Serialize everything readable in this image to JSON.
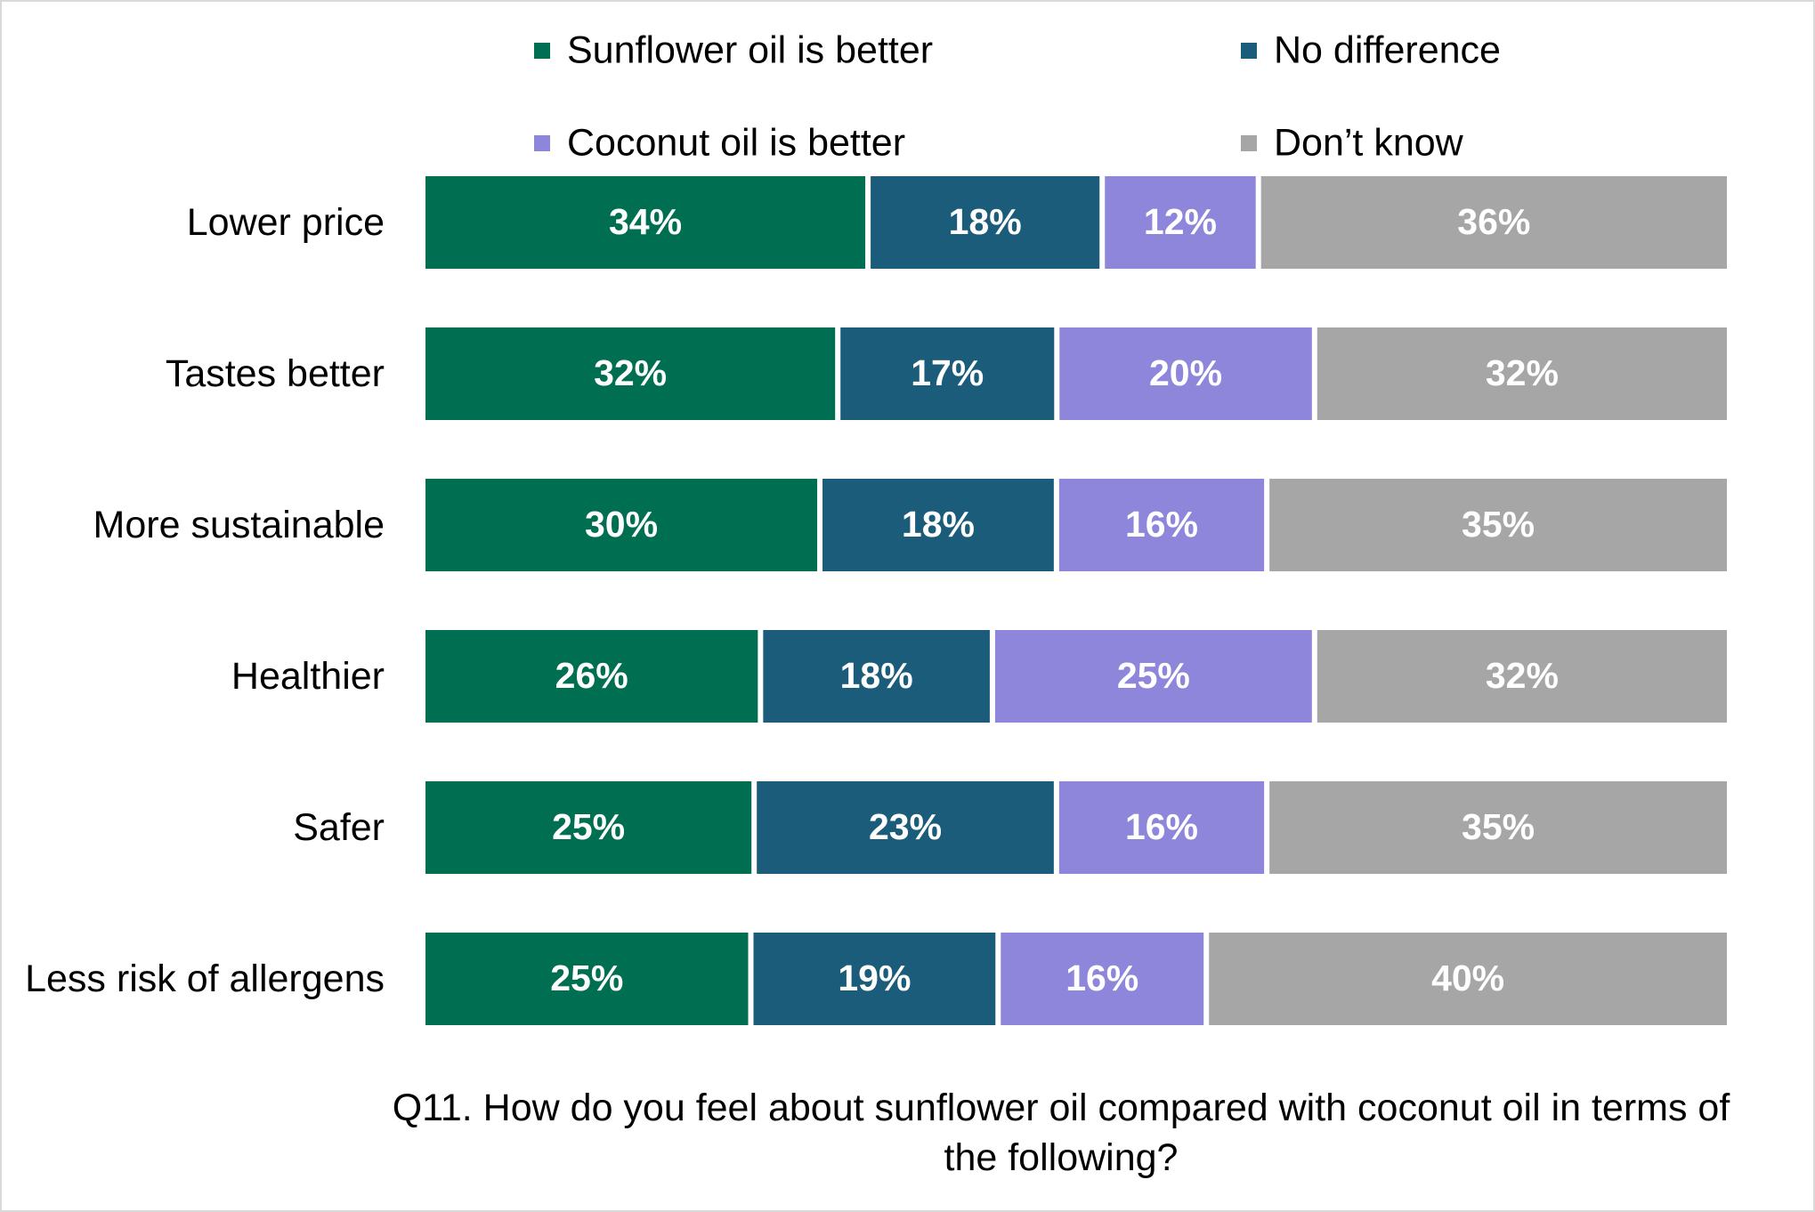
{
  "chart_data": {
    "type": "stacked-bar-100",
    "categories": [
      "Lower price",
      "Tastes better",
      "More sustainable",
      "Healthier",
      "Safer",
      "Less risk of allergens"
    ],
    "series": [
      {
        "name": "Sunflower oil is better",
        "color": "#006f51",
        "values": [
          34,
          32,
          30,
          26,
          25,
          25
        ],
        "value_labels": [
          "34%",
          "32%",
          "30%",
          "26%",
          "25%",
          "25%"
        ]
      },
      {
        "name": "No difference",
        "color": "#1a5c7a",
        "values": [
          18,
          17,
          18,
          18,
          23,
          19
        ],
        "value_labels": [
          "18%",
          "17%",
          "18%",
          "18%",
          "23%",
          "19%"
        ]
      },
      {
        "name": "Coconut oil is better",
        "color": "#8e86da",
        "values": [
          12,
          20,
          16,
          25,
          16,
          16
        ],
        "value_labels": [
          "12%",
          "20%",
          "16%",
          "25%",
          "16%",
          "16%"
        ]
      },
      {
        "name": "Don’t know",
        "color": "#a6a6a6",
        "values": [
          36,
          32,
          35,
          32,
          35,
          40
        ],
        "value_labels": [
          "36%",
          "32%",
          "35%",
          "32%",
          "35%",
          "40%"
        ]
      }
    ],
    "legend": "top",
    "caption": "Q11. How do you feel about sunflower oil compared with coconut oil in terms of the following?"
  }
}
